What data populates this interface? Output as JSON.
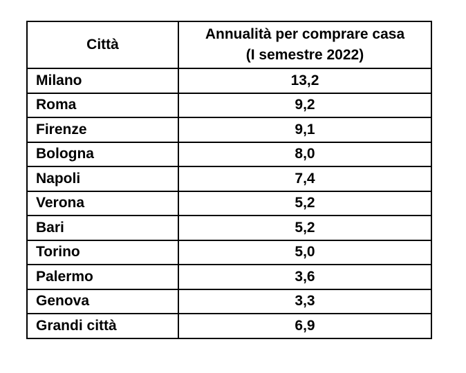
{
  "table": {
    "header": {
      "city": "Città",
      "value": [
        "Annualità per comprare casa",
        "(I semestre 2022)"
      ]
    },
    "rows": [
      [
        "Milano",
        "13,2"
      ],
      [
        "Roma",
        "9,2"
      ],
      [
        "Firenze",
        "9,1"
      ],
      [
        "Bologna",
        "8,0"
      ],
      [
        "Napoli",
        "7,4"
      ],
      [
        "Verona",
        "5,2"
      ],
      [
        "Bari",
        "5,2"
      ],
      [
        "Torino",
        "5,0"
      ],
      [
        "Palermo",
        "3,6"
      ],
      [
        "Genova",
        "3,3"
      ],
      [
        "Grandi città",
        "6,9"
      ]
    ]
  }
}
